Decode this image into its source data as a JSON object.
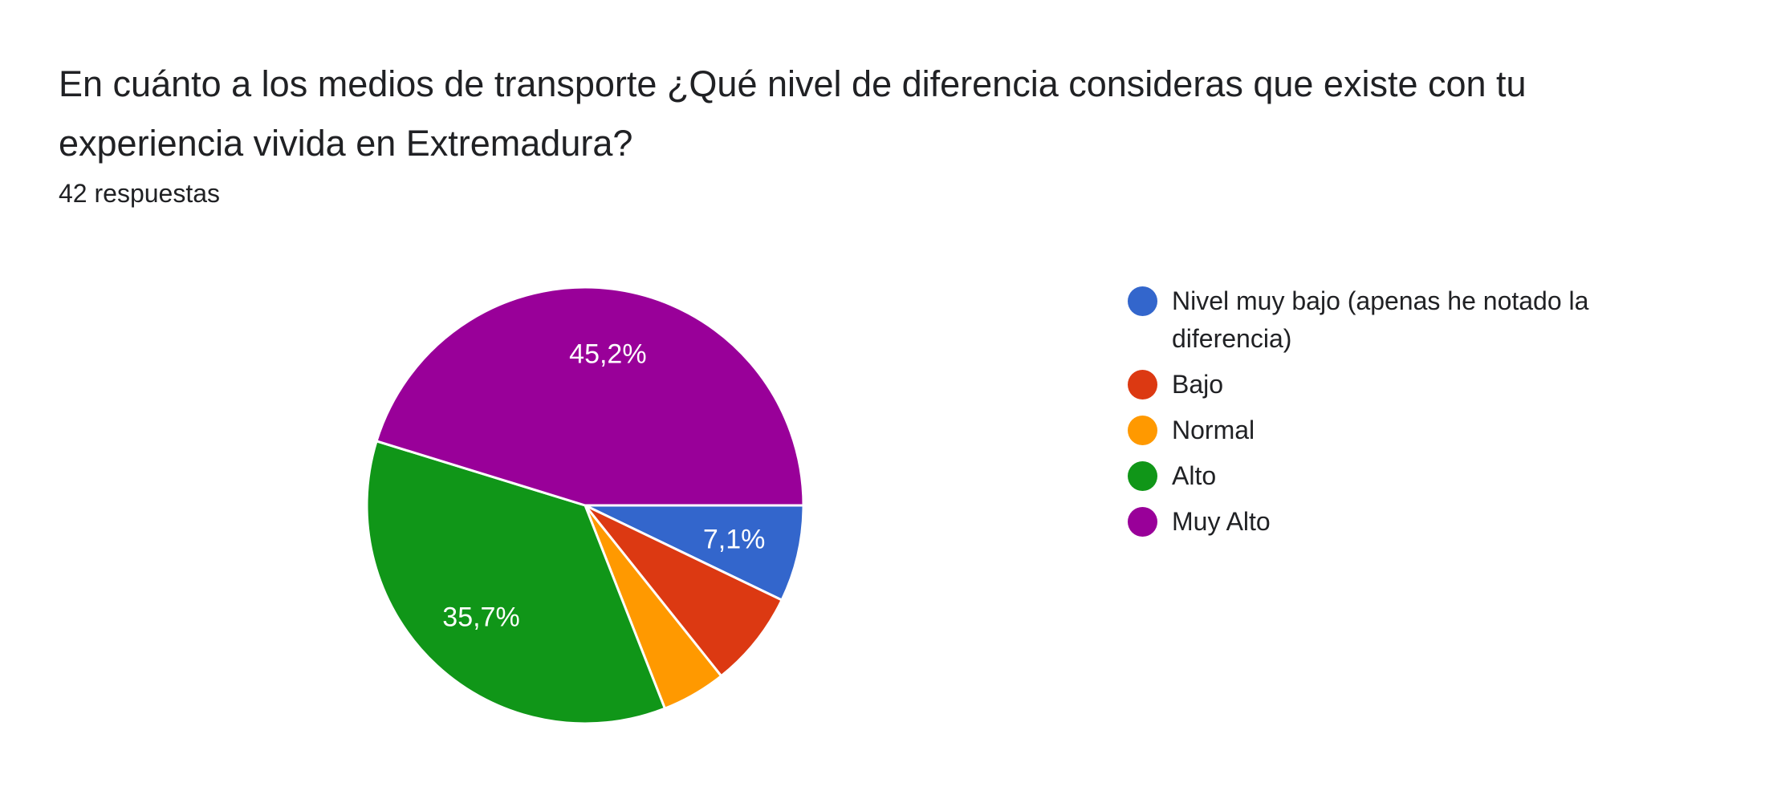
{
  "question": {
    "title": "En cuánto a los medios de transporte ¿Qué nivel de diferencia consideras que existe con tu experiencia vivida en Extremadura?",
    "responses": "42 respuestas"
  },
  "chart_data": {
    "type": "pie",
    "title": "",
    "total": 42,
    "slices": [
      {
        "label": "Nivel muy bajo (apenas he notado la diferencia)",
        "value": 3,
        "percent": "7,1%",
        "color": "#3366cc",
        "show_label": true
      },
      {
        "label": "Bajo",
        "value": 3,
        "percent": "7,1%",
        "color": "#dc3912",
        "show_label": false
      },
      {
        "label": "Normal",
        "value": 2,
        "percent": "4,8%",
        "color": "#ff9900",
        "show_label": false
      },
      {
        "label": "Alto",
        "value": 15,
        "percent": "35,7%",
        "color": "#109618",
        "show_label": true
      },
      {
        "label": "Muy Alto",
        "value": 19,
        "percent": "45,2%",
        "color": "#990099",
        "show_label": true
      }
    ],
    "legend_position": "right"
  }
}
